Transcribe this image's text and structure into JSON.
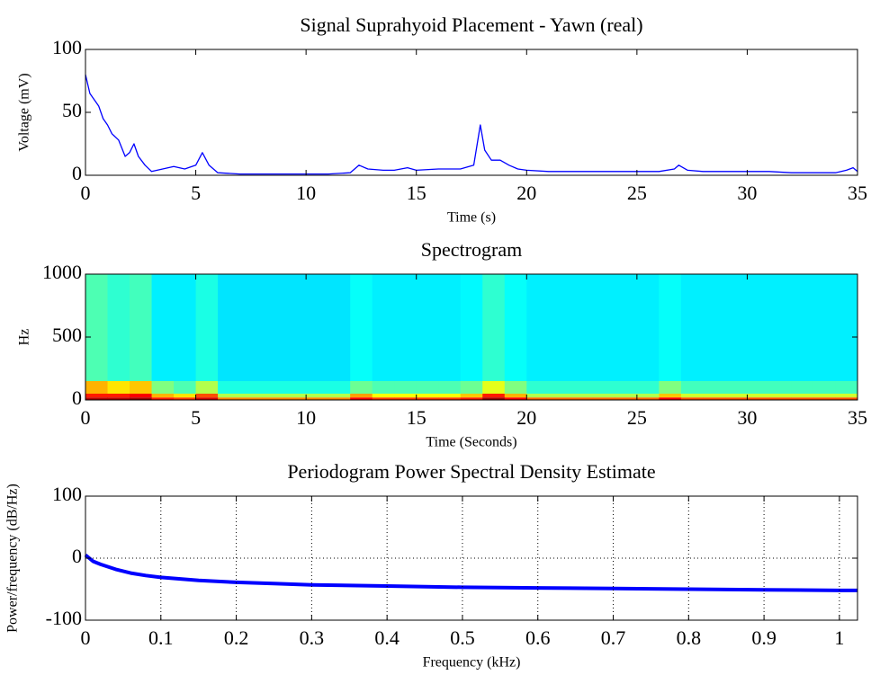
{
  "chart_data": [
    {
      "type": "line",
      "title": "Signal Suprahyoid Placement - Yawn (real)",
      "x_label": "Time (s)",
      "y_label": "Voltage (mV)",
      "xlim": [
        0,
        35
      ],
      "xticks": [
        0,
        5,
        10,
        15,
        20,
        25,
        30,
        35
      ],
      "ylim": [
        0,
        100
      ],
      "yticks": [
        0,
        50,
        100
      ],
      "grid": false,
      "color": "#0000ff",
      "x": [
        0,
        0.2,
        0.4,
        0.6,
        0.8,
        1.0,
        1.2,
        1.5,
        1.8,
        2.0,
        2.2,
        2.4,
        2.7,
        3.0,
        3.5,
        4,
        4.5,
        5,
        5.3,
        5.6,
        6,
        7,
        8,
        9,
        10,
        11,
        12,
        12.4,
        12.8,
        13.5,
        14,
        14.6,
        15,
        16,
        17,
        17.6,
        17.9,
        18.1,
        18.4,
        18.8,
        19.2,
        19.6,
        20,
        21,
        22,
        23,
        24,
        25,
        26,
        26.7,
        26.9,
        27.3,
        28,
        29,
        30,
        31,
        32,
        33,
        34,
        34.5,
        34.8,
        35
      ],
      "values": [
        80,
        65,
        60,
        55,
        45,
        40,
        33,
        28,
        15,
        18,
        25,
        15,
        8,
        3,
        5,
        7,
        5,
        8,
        18,
        8,
        2,
        1,
        1,
        1,
        1,
        1,
        2,
        8,
        5,
        4,
        4,
        6,
        4,
        5,
        5,
        8,
        40,
        20,
        12,
        12,
        8,
        5,
        4,
        3,
        3,
        3,
        3,
        3,
        3,
        5,
        8,
        4,
        3,
        3,
        3,
        3,
        2,
        2,
        2,
        4,
        6,
        3
      ]
    },
    {
      "type": "heatmap",
      "title": "Spectrogram",
      "x_label": "Time (Seconds)",
      "y_label": "Hz",
      "xlim": [
        0,
        35
      ],
      "xticks": [
        0,
        5,
        10,
        15,
        20,
        25,
        30,
        35
      ],
      "ylim": [
        0,
        1000
      ],
      "yticks": [
        0,
        500,
        1000
      ],
      "colormap": "jet",
      "clim": [
        0,
        1
      ],
      "xbins": [
        0,
        1,
        2,
        3,
        4,
        5,
        6,
        7,
        8,
        9,
        10,
        11,
        12,
        13,
        14,
        15,
        16,
        17,
        18,
        19,
        20,
        21,
        22,
        23,
        24,
        25,
        26,
        27,
        28,
        29,
        30,
        31,
        32,
        33,
        34,
        35
      ],
      "ybins": [
        0,
        20,
        50,
        150,
        1000
      ],
      "values": [
        [
          0.95,
          0.95,
          0.97,
          0.85,
          0.82,
          0.92,
          0.75,
          0.75,
          0.75,
          0.75,
          0.75,
          0.75,
          0.88,
          0.82,
          0.82,
          0.82,
          0.82,
          0.85,
          0.97,
          0.88,
          0.78,
          0.78,
          0.78,
          0.78,
          0.78,
          0.78,
          0.88,
          0.8,
          0.8,
          0.8,
          0.8,
          0.8,
          0.8,
          0.8,
          0.8
        ],
        [
          0.85,
          0.85,
          0.88,
          0.7,
          0.65,
          0.8,
          0.55,
          0.55,
          0.55,
          0.55,
          0.55,
          0.55,
          0.72,
          0.62,
          0.62,
          0.62,
          0.62,
          0.68,
          0.85,
          0.7,
          0.55,
          0.55,
          0.55,
          0.55,
          0.55,
          0.55,
          0.68,
          0.58,
          0.58,
          0.58,
          0.58,
          0.58,
          0.58,
          0.58,
          0.58
        ],
        [
          0.7,
          0.65,
          0.68,
          0.5,
          0.45,
          0.55,
          0.4,
          0.4,
          0.4,
          0.4,
          0.4,
          0.4,
          0.48,
          0.45,
          0.45,
          0.45,
          0.45,
          0.48,
          0.6,
          0.5,
          0.42,
          0.42,
          0.42,
          0.42,
          0.42,
          0.42,
          0.5,
          0.44,
          0.44,
          0.44,
          0.44,
          0.44,
          0.44,
          0.44,
          0.44
        ],
        [
          0.45,
          0.42,
          0.44,
          0.36,
          0.36,
          0.4,
          0.35,
          0.35,
          0.35,
          0.35,
          0.35,
          0.35,
          0.38,
          0.36,
          0.36,
          0.36,
          0.36,
          0.37,
          0.42,
          0.38,
          0.36,
          0.36,
          0.36,
          0.36,
          0.36,
          0.36,
          0.38,
          0.36,
          0.36,
          0.36,
          0.36,
          0.36,
          0.36,
          0.36,
          0.36
        ]
      ]
    },
    {
      "type": "line",
      "title": "Periodogram Power Spectral Density Estimate",
      "x_label": "Frequency (kHz)",
      "y_label": "Power/frequency (dB/Hz)",
      "xlim": [
        0,
        1.024
      ],
      "xticks": [
        0,
        0.1,
        0.2,
        0.3,
        0.4,
        0.5,
        0.6,
        0.7,
        0.8,
        0.9,
        1
      ],
      "ylim": [
        -100,
        100
      ],
      "yticks": [
        -100,
        0,
        100
      ],
      "grid": true,
      "color": "#0000ff",
      "x": [
        0,
        0.01,
        0.02,
        0.04,
        0.06,
        0.08,
        0.1,
        0.15,
        0.2,
        0.25,
        0.3,
        0.4,
        0.5,
        0.6,
        0.7,
        0.8,
        0.9,
        1.0,
        1.024
      ],
      "values": [
        5,
        -5,
        -10,
        -18,
        -24,
        -28,
        -31,
        -36,
        -39,
        -41,
        -43,
        -45,
        -47,
        -48,
        -49,
        -50,
        -51,
        -52,
        -52
      ]
    }
  ]
}
